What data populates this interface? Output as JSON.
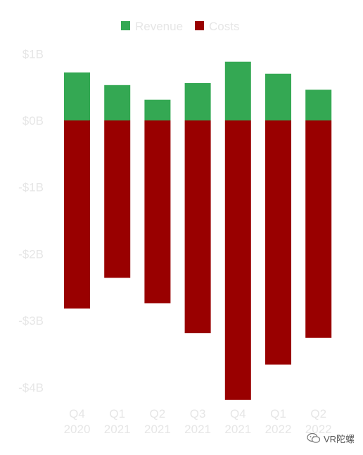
{
  "chart_data": {
    "type": "bar",
    "stacked": true,
    "categories": [
      {
        "line1": "Q4",
        "line2": "2020"
      },
      {
        "line1": "Q1",
        "line2": "2021"
      },
      {
        "line1": "Q2",
        "line2": "2021"
      },
      {
        "line1": "Q3",
        "line2": "2021"
      },
      {
        "line1": "Q4",
        "line2": "2021"
      },
      {
        "line1": "Q1",
        "line2": "2022"
      },
      {
        "line1": "Q2",
        "line2": "2022"
      }
    ],
    "series": [
      {
        "name": "Revenue",
        "color": "#34a853",
        "values": [
          0.72,
          0.53,
          0.31,
          0.56,
          0.88,
          0.7,
          0.46
        ]
      },
      {
        "name": "Costs",
        "color": "#990000",
        "values": [
          -2.82,
          -2.36,
          -2.74,
          -3.19,
          -4.19,
          -3.66,
          -3.26
        ]
      }
    ],
    "yticks": [
      {
        "value": 1,
        "label": "$1B"
      },
      {
        "value": 0,
        "label": "$0B"
      },
      {
        "value": -1,
        "label": "-$1B"
      },
      {
        "value": -2,
        "label": "-$2B"
      },
      {
        "value": -3,
        "label": "-$3B"
      },
      {
        "value": -4,
        "label": "-$4B"
      }
    ],
    "ylim": [
      -4.2,
      1.0
    ],
    "grid": false,
    "legend_position": "top-center"
  },
  "watermark": {
    "text": "VR陀螺",
    "icon": "wechat-icon"
  }
}
